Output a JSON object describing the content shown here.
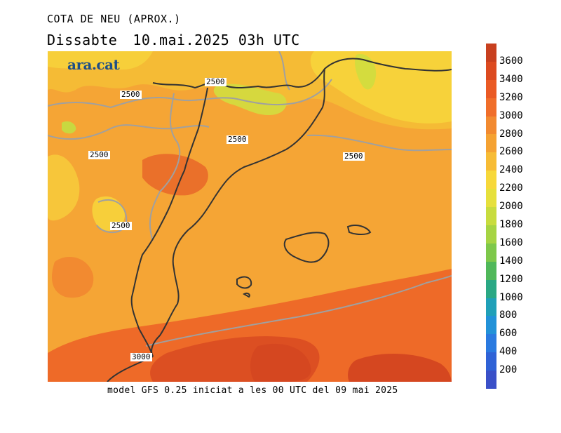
{
  "header": {
    "title": "COTA DE NEU (APROX.)",
    "day": "Dissabte",
    "datetime": "10.mai.2025 03h UTC"
  },
  "footer": {
    "model_info": "model GFS 0.25 iniciat a les 00 UTC del 09 mai 2025"
  },
  "logo": {
    "text": "ara.cat"
  },
  "contour_labels": [
    "2500",
    "2500",
    "2500",
    "2500",
    "2500",
    "2500",
    "3000"
  ],
  "colorbar": {
    "labels": [
      "3600",
      "3400",
      "3200",
      "3000",
      "2800",
      "2600",
      "2400",
      "2200",
      "2000",
      "1800",
      "1600",
      "1400",
      "1200",
      "1000",
      "800",
      "600",
      "400",
      "200"
    ],
    "colors": [
      "#c8401f",
      "#dc4a20",
      "#ea5a24",
      "#f06e2a",
      "#f28a30",
      "#f5a232",
      "#f7bc35",
      "#f7d83a",
      "#e6e03c",
      "#c8dc3e",
      "#a6d443",
      "#7ec84a",
      "#50b85a",
      "#2aa884",
      "#20a0b8",
      "#2292d8",
      "#2a7ae0",
      "#2f62d6",
      "#3a50c8"
    ],
    "unit_range": [
      200,
      3600
    ]
  },
  "map_colors": {
    "base": "#f5a535",
    "deep_orange": "#ea6a2a",
    "red_orange": "#dc4a20",
    "yellow": "#f7d23a",
    "yellow_green": "#d4dc3e",
    "coast": "#333333",
    "border_grey": "#a0a0a0"
  }
}
